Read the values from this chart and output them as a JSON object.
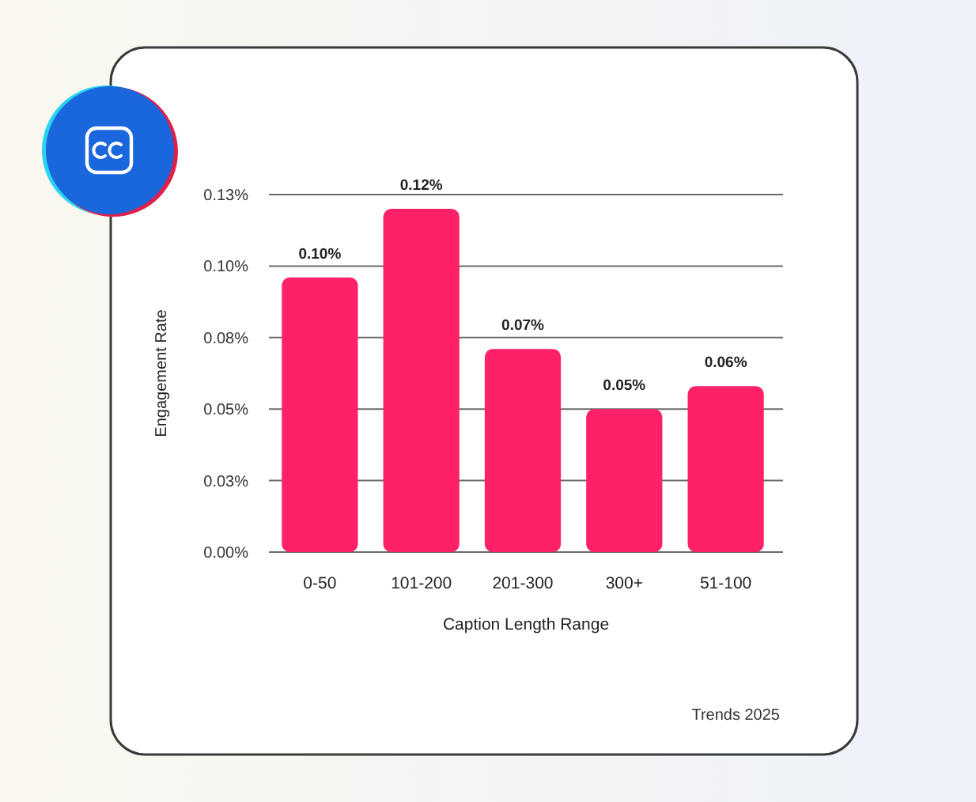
{
  "chart_data": {
    "type": "bar",
    "xlabel": "Caption Length Range",
    "ylabel": "Engagement Rate",
    "categories": [
      "0-50",
      "101-200",
      "201-300",
      "300+",
      "51-100"
    ],
    "values": [
      0.096,
      0.12,
      0.071,
      0.05,
      0.058
    ],
    "value_labels": [
      "0.10%",
      "0.12%",
      "0.07%",
      "0.05%",
      "0.06%"
    ],
    "color": "#fe2168",
    "ylim": [
      0,
      0.125
    ],
    "yticks": [
      {
        "value": 0,
        "label": "0.00%"
      },
      {
        "value": 0.025,
        "label": "0.03%"
      },
      {
        "value": 0.05,
        "label": "0.05%"
      },
      {
        "value": 0.075,
        "label": "0.08%"
      },
      {
        "value": 0.1,
        "label": "0.10%"
      },
      {
        "value": 0.125,
        "label": "0.13%"
      }
    ],
    "grid": "y",
    "annotations": [
      "Trends 2025"
    ]
  }
}
